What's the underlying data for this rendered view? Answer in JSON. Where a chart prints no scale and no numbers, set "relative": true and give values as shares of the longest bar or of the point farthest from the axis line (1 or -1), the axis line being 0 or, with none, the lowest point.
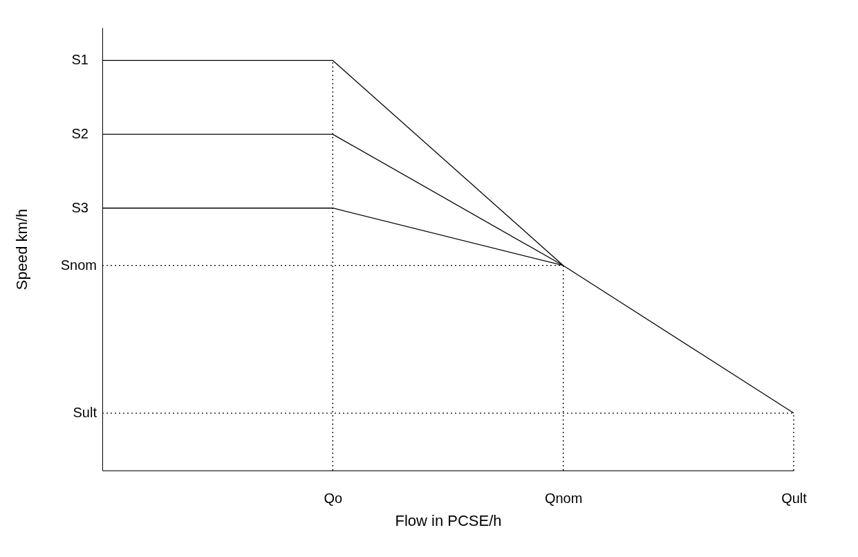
{
  "chart_data": {
    "type": "line",
    "relative": true,
    "xlabel": "Flow in PCSE/h",
    "ylabel": "Speed km/h",
    "legend": false,
    "grid": false,
    "marker": "none",
    "line_style": "solid",
    "categories": [
      null,
      "Qo",
      "Qnom",
      "Qult"
    ],
    "series": [
      {
        "name": "S1",
        "color": "#000000",
        "values": [
          1,
          1,
          0.5,
          0.14
        ]
      },
      {
        "name": "S2",
        "color": "#000000",
        "values": [
          0.82,
          0.82,
          0.5,
          null
        ]
      },
      {
        "name": "S3",
        "color": "#000000",
        "values": [
          0.64,
          0.64,
          0.5,
          null
        ]
      }
    ],
    "ref_lines": [
      {
        "axis": "y",
        "value": 0.5,
        "label": "Snom",
        "line_style": "dotted"
      },
      {
        "axis": "y",
        "value": 0.14,
        "label": "Sult",
        "line_style": "dotted"
      },
      {
        "axis": "x",
        "value": "Qo",
        "line_style": "dotted"
      },
      {
        "axis": "x",
        "value": "Qnom",
        "line_style": "dotted"
      },
      {
        "axis": "x",
        "value": "Qult",
        "line_style": "dotted"
      }
    ]
  }
}
